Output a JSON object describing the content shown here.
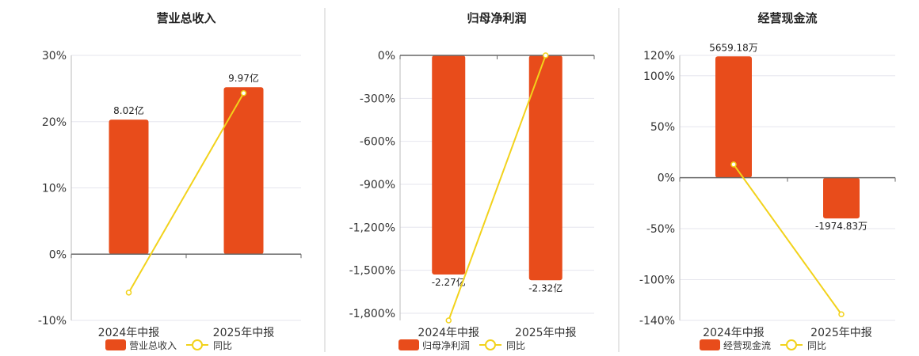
{
  "chart_data": [
    {
      "type": "bar",
      "title": "营业总收入",
      "categories": [
        "2024年中报",
        "2025年中报"
      ],
      "ylim": [
        -10,
        30
      ],
      "yticks": [
        30,
        20,
        10,
        0,
        -10
      ],
      "ytick_labels": [
        "30%",
        "20%",
        "10%",
        "0%",
        "-10%"
      ],
      "series": [
        {
          "name": "营业总收入",
          "kind": "bar",
          "values": [
            20.3,
            25.2
          ],
          "labels": [
            "8.02亿",
            "9.97亿"
          ]
        },
        {
          "name": "同比",
          "kind": "line",
          "values": [
            -5.8,
            24.3
          ]
        }
      ],
      "legend": "bottom",
      "grid": true
    },
    {
      "type": "bar",
      "title": "归母净利润",
      "categories": [
        "2024年中报",
        "2025年中报"
      ],
      "ylim": [
        -1850,
        0
      ],
      "yticks": [
        0,
        -300,
        -600,
        -900,
        -1200,
        -1500,
        -1800
      ],
      "ytick_labels": [
        "0%",
        "-300%",
        "-600%",
        "-900%",
        "-1,200%",
        "-1,500%",
        "-1,800%"
      ],
      "series": [
        {
          "name": "归母净利润",
          "kind": "bar",
          "values": [
            -1530,
            -1570
          ],
          "labels": [
            "-2.27亿",
            "-2.32亿"
          ]
        },
        {
          "name": "同比",
          "kind": "line",
          "values": [
            -1850,
            0
          ]
        }
      ],
      "legend": "bottom",
      "grid": true
    },
    {
      "type": "bar",
      "title": "经营现金流",
      "categories": [
        "2024年中报",
        "2025年中报"
      ],
      "ylim": [
        -140,
        120
      ],
      "yticks": [
        120,
        100,
        50,
        0,
        -50,
        -100,
        -140
      ],
      "ytick_labels": [
        "120%",
        "100%",
        "50%",
        "0%",
        "-50%",
        "-100%",
        "-140%"
      ],
      "series": [
        {
          "name": "经营现金流",
          "kind": "bar",
          "values": [
            119,
            -40
          ],
          "labels": [
            "5659.18万",
            "-1974.83万"
          ]
        },
        {
          "name": "同比",
          "kind": "line",
          "values": [
            13,
            -134
          ]
        }
      ],
      "legend": "bottom",
      "grid": true
    }
  ],
  "colors": {
    "bar": "#e84c1b",
    "line": "#f2d21b",
    "grid": "#e6e6ee",
    "axis": "#888888",
    "divider": "#cccccc"
  }
}
